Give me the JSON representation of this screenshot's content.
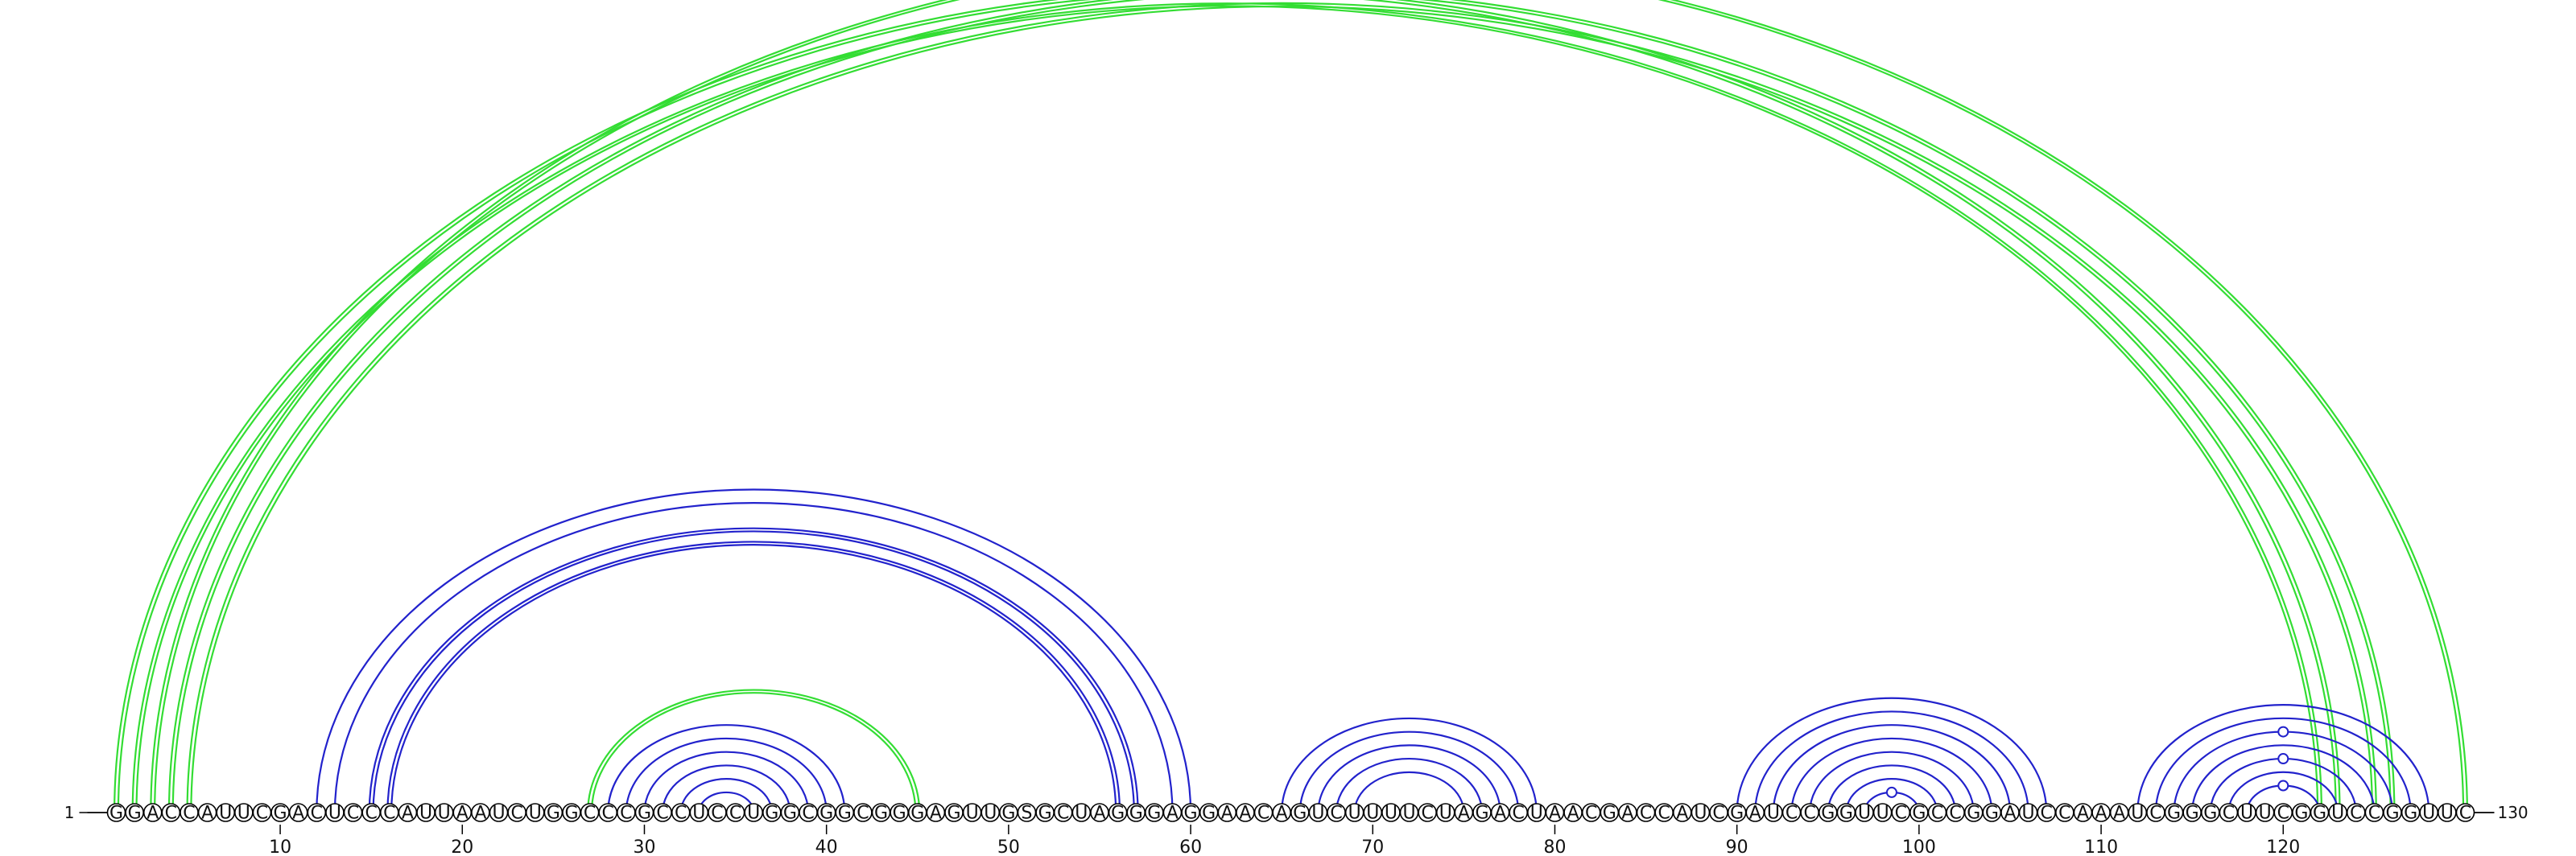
{
  "chart_data": {
    "type": "arc-diagram",
    "sequence": "GGACCAUUCGACUCCCAUUAAUCUGGCCCGCCUCCUGGCGGCGGGAGUUGSGCUAGGGAGGAACAGUCUUUUCUAGACUAACGACCAUCGAUCCGGUUCGCCGGAUCCAAAUCGGGCUUCGGUCCGGUUC",
    "length": 130,
    "start_label": "1",
    "end_label": "130",
    "ticks": [
      10,
      20,
      30,
      40,
      50,
      60,
      70,
      80,
      90,
      100,
      110,
      120
    ],
    "colors": {
      "green": "#33dd33",
      "blue": "#2222cc"
    },
    "arcs": [
      {
        "i": 1,
        "j": 123,
        "color": "green",
        "count": 2
      },
      {
        "i": 2,
        "j": 122,
        "color": "green",
        "count": 2
      },
      {
        "i": 3,
        "j": 130,
        "color": "green",
        "count": 2
      },
      {
        "i": 4,
        "j": 126,
        "color": "green",
        "count": 2
      },
      {
        "i": 5,
        "j": 125,
        "color": "green",
        "count": 2
      },
      {
        "i": 12,
        "j": 60,
        "color": "blue",
        "count": 1
      },
      {
        "i": 13,
        "j": 59,
        "color": "blue",
        "count": 1
      },
      {
        "i": 15,
        "j": 57,
        "color": "blue",
        "count": 2
      },
      {
        "i": 16,
        "j": 56,
        "color": "blue",
        "count": 2
      },
      {
        "i": 27,
        "j": 45,
        "color": "green",
        "count": 2
      },
      {
        "i": 28,
        "j": 41,
        "color": "blue",
        "count": 1
      },
      {
        "i": 29,
        "j": 40,
        "color": "blue",
        "count": 1
      },
      {
        "i": 30,
        "j": 39,
        "color": "blue",
        "count": 1
      },
      {
        "i": 31,
        "j": 38,
        "color": "blue",
        "count": 1
      },
      {
        "i": 32,
        "j": 37,
        "color": "blue",
        "count": 1
      },
      {
        "i": 33,
        "j": 36,
        "color": "blue",
        "count": 1
      },
      {
        "i": 65,
        "j": 79,
        "color": "blue",
        "count": 1
      },
      {
        "i": 66,
        "j": 78,
        "color": "blue",
        "count": 1
      },
      {
        "i": 67,
        "j": 77,
        "color": "blue",
        "count": 1
      },
      {
        "i": 68,
        "j": 76,
        "color": "blue",
        "count": 1
      },
      {
        "i": 69,
        "j": 75,
        "color": "blue",
        "count": 1
      },
      {
        "i": 90,
        "j": 107,
        "color": "blue",
        "count": 1
      },
      {
        "i": 91,
        "j": 106,
        "color": "blue",
        "count": 1
      },
      {
        "i": 92,
        "j": 105,
        "color": "blue",
        "count": 1
      },
      {
        "i": 93,
        "j": 104,
        "color": "blue",
        "count": 1
      },
      {
        "i": 94,
        "j": 103,
        "color": "blue",
        "count": 1
      },
      {
        "i": 95,
        "j": 102,
        "color": "blue",
        "count": 1
      },
      {
        "i": 96,
        "j": 101,
        "color": "blue",
        "count": 1
      },
      {
        "i": 97,
        "j": 100,
        "color": "blue",
        "count": 1
      },
      {
        "i": 112,
        "j": 128,
        "color": "blue",
        "count": 1
      },
      {
        "i": 113,
        "j": 127,
        "color": "blue",
        "count": 1
      },
      {
        "i": 114,
        "j": 126,
        "color": "blue",
        "count": 1
      },
      {
        "i": 115,
        "j": 125,
        "color": "blue",
        "count": 1
      },
      {
        "i": 116,
        "j": 124,
        "color": "blue",
        "count": 1
      },
      {
        "i": 117,
        "j": 123,
        "color": "blue",
        "count": 1
      },
      {
        "i": 118,
        "j": 122,
        "color": "blue",
        "count": 1
      }
    ],
    "markers": [
      {
        "i": 3,
        "j": 130,
        "color": "green"
      },
      {
        "i": 97,
        "j": 100,
        "color": "blue"
      },
      {
        "i": 114,
        "j": 126,
        "color": "blue"
      },
      {
        "i": 116,
        "j": 124,
        "color": "blue"
      },
      {
        "i": 118,
        "j": 122,
        "color": "blue"
      }
    ]
  }
}
